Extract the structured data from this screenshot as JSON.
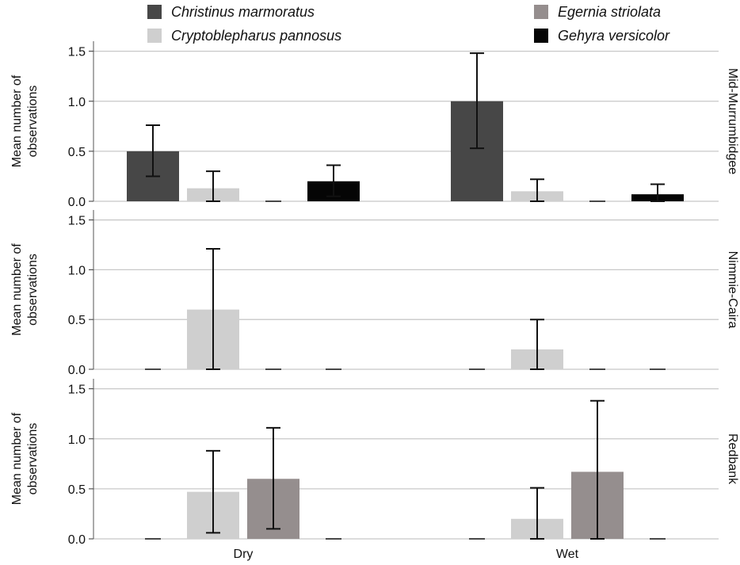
{
  "chart_data": {
    "type": "bar",
    "facet_by": "site",
    "categories": [
      "Dry",
      "Wet"
    ],
    "ylabel": [
      "Mean number of",
      "observations"
    ],
    "ylim": [
      0,
      1.6
    ],
    "yticks": [
      "0.0",
      "0.5",
      "1.0",
      "1.5"
    ],
    "grid": true,
    "legend_position": "top",
    "series": [
      {
        "name": "Christinus marmoratus",
        "color": "#474747"
      },
      {
        "name": "Cryptoblepharus pannosus",
        "color": "#cfcfcf"
      },
      {
        "name": "Egernia striolata",
        "color": "#958e8e"
      },
      {
        "name": "Gehyra versicolor",
        "color": "#050505"
      }
    ],
    "facets": [
      {
        "label": "Mid-Murrumbidgee",
        "values": [
          [
            0.5,
            1.0
          ],
          [
            0.13,
            0.1
          ],
          [
            0.0,
            0.0
          ],
          [
            0.2,
            0.07
          ]
        ],
        "err_low": [
          [
            0.25,
            0.53
          ],
          [
            0.0,
            0.0
          ],
          [
            0.0,
            0.0
          ],
          [
            0.05,
            0.0
          ]
        ],
        "err_high": [
          [
            0.76,
            1.48
          ],
          [
            0.3,
            0.22
          ],
          [
            0.0,
            0.0
          ],
          [
            0.36,
            0.17
          ]
        ]
      },
      {
        "label": "Nimmie-Caira",
        "values": [
          [
            0.0,
            0.0
          ],
          [
            0.6,
            0.2
          ],
          [
            0.0,
            0.0
          ],
          [
            0.0,
            0.0
          ]
        ],
        "err_low": [
          [
            0.0,
            0.0
          ],
          [
            0.0,
            0.0
          ],
          [
            0.0,
            0.0
          ],
          [
            0.0,
            0.0
          ]
        ],
        "err_high": [
          [
            0.0,
            0.0
          ],
          [
            1.21,
            0.5
          ],
          [
            0.0,
            0.0
          ],
          [
            0.0,
            0.0
          ]
        ]
      },
      {
        "label": "Redbank",
        "values": [
          [
            0.0,
            0.0
          ],
          [
            0.47,
            0.2
          ],
          [
            0.6,
            0.67
          ],
          [
            0.0,
            0.0
          ]
        ],
        "err_low": [
          [
            0.0,
            0.0
          ],
          [
            0.06,
            0.0
          ],
          [
            0.1,
            0.0
          ],
          [
            0.0,
            0.0
          ]
        ],
        "err_high": [
          [
            0.0,
            0.0
          ],
          [
            0.88,
            0.51
          ],
          [
            1.11,
            1.38
          ],
          [
            0.0,
            0.0
          ]
        ]
      }
    ]
  }
}
